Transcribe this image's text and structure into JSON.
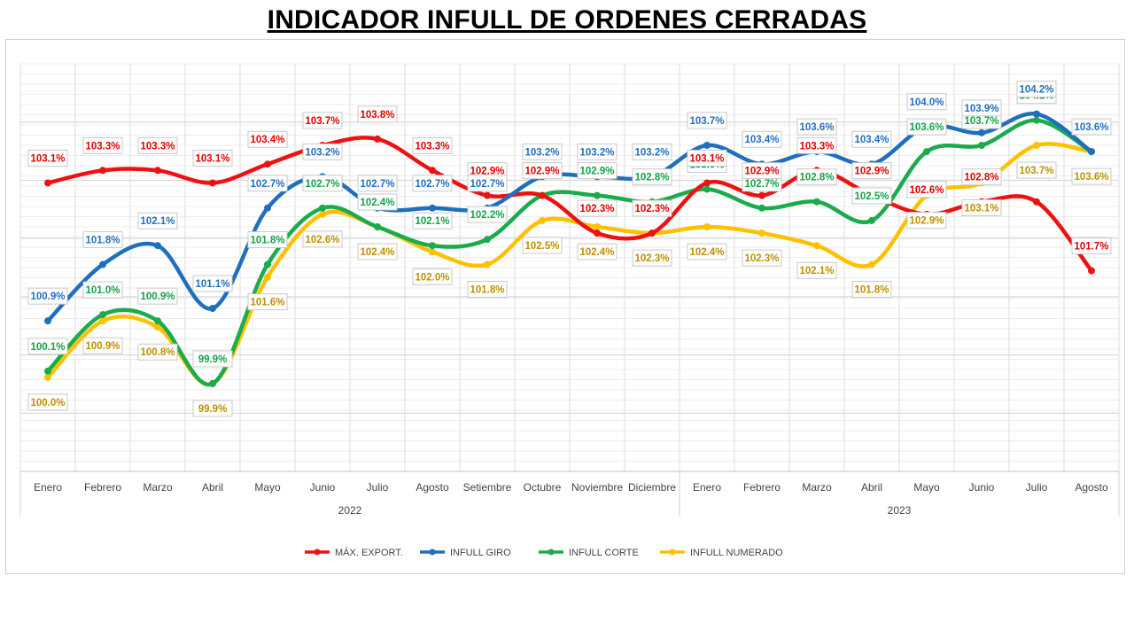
{
  "title": "INDICADOR INFULL DE ORDENES CERRADAS",
  "chart_data": {
    "type": "line",
    "title": "INDICADOR INFULL DE ORDENES CERRADAS",
    "categories": [
      "Enero",
      "Febrero",
      "Marzo",
      "Abril",
      "Mayo",
      "Junio",
      "Julio",
      "Agosto",
      "Setiembre",
      "Octubre",
      "Noviembre",
      "Diciembre",
      "Enero",
      "Febrero",
      "Marzo",
      "Abril",
      "Mayo",
      "Junio",
      "Julio",
      "Agosto"
    ],
    "groups": [
      {
        "label": "2022",
        "count": 12
      },
      {
        "label": "2023",
        "count": 8
      }
    ],
    "ylim": [
      98.5,
      105
    ],
    "grid": true,
    "legend_position": "bottom",
    "series": [
      {
        "name": "MÁX. EXPORT.",
        "color": "#ee1111",
        "values": [
          103.1,
          103.3,
          103.3,
          103.1,
          103.4,
          103.7,
          103.8,
          103.3,
          102.9,
          102.9,
          102.3,
          102.3,
          103.1,
          102.9,
          103.3,
          102.9,
          102.6,
          102.8,
          102.8,
          101.7
        ],
        "labels": [
          "103.1%",
          "103.3%",
          "103.3%",
          "103.1%",
          "103.4%",
          "103.7%",
          "103.8%",
          "103.3%",
          "102.9%",
          "102.9%",
          "102.3%",
          "102.3%",
          "103.1%",
          "102.9%",
          "103.3%",
          "102.9%",
          "102.6%",
          "102.8%",
          "",
          "101.7%"
        ]
      },
      {
        "name": "INFULL GIRO",
        "color": "#1f6fbf",
        "values": [
          100.9,
          101.8,
          102.1,
          101.1,
          102.7,
          103.2,
          102.7,
          102.7,
          102.7,
          103.2,
          103.2,
          103.2,
          103.7,
          103.4,
          103.6,
          103.4,
          104.0,
          103.9,
          104.2,
          103.6
        ],
        "labels": [
          "100.9%",
          "101.8%",
          "102.1%",
          "101.1%",
          "102.7%",
          "103.2%",
          "102.7%",
          "102.7%",
          "102.7%",
          "103.2%",
          "103.2%",
          "103.2%",
          "103.7%",
          "103.4%",
          "103.6%",
          "103.4%",
          "104.0%",
          "103.9%",
          "104.2%",
          "103.6%"
        ]
      },
      {
        "name": "INFULL CORTE",
        "color": "#1aab4b",
        "values": [
          100.1,
          101.0,
          100.9,
          99.9,
          101.8,
          102.7,
          102.4,
          102.1,
          102.2,
          102.9,
          102.9,
          102.8,
          103.0,
          102.7,
          102.8,
          102.5,
          103.6,
          103.7,
          104.1,
          103.6
        ],
        "labels": [
          "100.1%",
          "101.0%",
          "100.9%",
          "99.9%",
          "101.8%",
          "102.7%",
          "102.4%",
          "102.1%",
          "102.2%",
          "102.9%",
          "102.9%",
          "102.8%",
          "103.0%",
          "102.7%",
          "102.8%",
          "102.5%",
          "103.6%",
          "103.7%",
          "104.1%",
          ""
        ]
      },
      {
        "name": "INFULL NUMERADO",
        "color": "#ffc000",
        "values": [
          100.0,
          100.9,
          100.8,
          99.9,
          101.6,
          102.6,
          102.4,
          102.0,
          101.8,
          102.5,
          102.4,
          102.3,
          102.4,
          102.3,
          102.1,
          101.8,
          102.9,
          103.1,
          103.7,
          103.6
        ],
        "labels": [
          "100.0%",
          "100.9%",
          "100.8%",
          "99.9%",
          "101.6%",
          "102.6%",
          "102.4%",
          "102.0%",
          "101.8%",
          "102.5%",
          "102.4%",
          "102.3%",
          "102.4%",
          "102.3%",
          "102.1%",
          "101.8%",
          "102.9%",
          "103.1%",
          "103.7%",
          "103.6%"
        ]
      }
    ]
  },
  "label_colors": {
    "MÁX. EXPORT.": "#e00000",
    "INFULL GIRO": "#1f6fbf",
    "INFULL CORTE": "#12a346",
    "INFULL NUMERADO": "#bf8f00"
  }
}
